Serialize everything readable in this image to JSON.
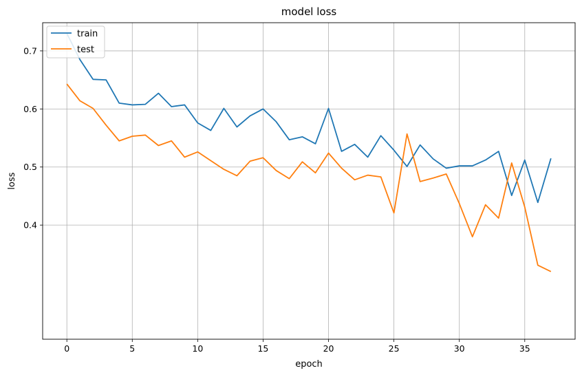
{
  "chart_data": {
    "type": "line",
    "title": "model loss",
    "xlabel": "epoch",
    "ylabel": "loss",
    "xlim": [
      -1.85,
      38.85
    ],
    "ylim": [
      0.2035,
      0.7485
    ],
    "x_ticks": [
      0,
      5,
      10,
      15,
      20,
      25,
      30,
      35
    ],
    "y_ticks": [
      0.4,
      0.5,
      0.6,
      0.7
    ],
    "grid": true,
    "legend_position": "top-left",
    "x": [
      0,
      1,
      2,
      3,
      4,
      5,
      6,
      7,
      8,
      9,
      10,
      11,
      12,
      13,
      14,
      15,
      16,
      17,
      18,
      19,
      20,
      21,
      22,
      23,
      24,
      25,
      26,
      27,
      28,
      29,
      30,
      31,
      32,
      33,
      34,
      35,
      36,
      37
    ],
    "series": [
      {
        "name": "train",
        "color": "#1f77b4",
        "values": [
          0.73,
          0.685,
          0.651,
          0.65,
          0.61,
          0.607,
          0.608,
          0.627,
          0.604,
          0.607,
          0.576,
          0.563,
          0.601,
          0.569,
          0.588,
          0.6,
          0.578,
          0.547,
          0.552,
          0.54,
          0.601,
          0.527,
          0.539,
          0.517,
          0.554,
          0.529,
          0.501,
          0.538,
          0.514,
          0.498,
          0.502,
          0.502,
          0.512,
          0.527,
          0.451,
          0.512,
          0.439,
          0.515
        ]
      },
      {
        "name": "test",
        "color": "#ff7f0e",
        "values": [
          0.643,
          0.614,
          0.601,
          0.572,
          0.545,
          0.553,
          0.555,
          0.537,
          0.545,
          0.517,
          0.526,
          0.511,
          0.496,
          0.485,
          0.51,
          0.516,
          0.494,
          0.48,
          0.509,
          0.49,
          0.524,
          0.498,
          0.478,
          0.486,
          0.483,
          0.421,
          0.557,
          0.475,
          0.481,
          0.488,
          0.437,
          0.38,
          0.435,
          0.412,
          0.507,
          0.431,
          0.331,
          0.32
        ]
      }
    ]
  }
}
